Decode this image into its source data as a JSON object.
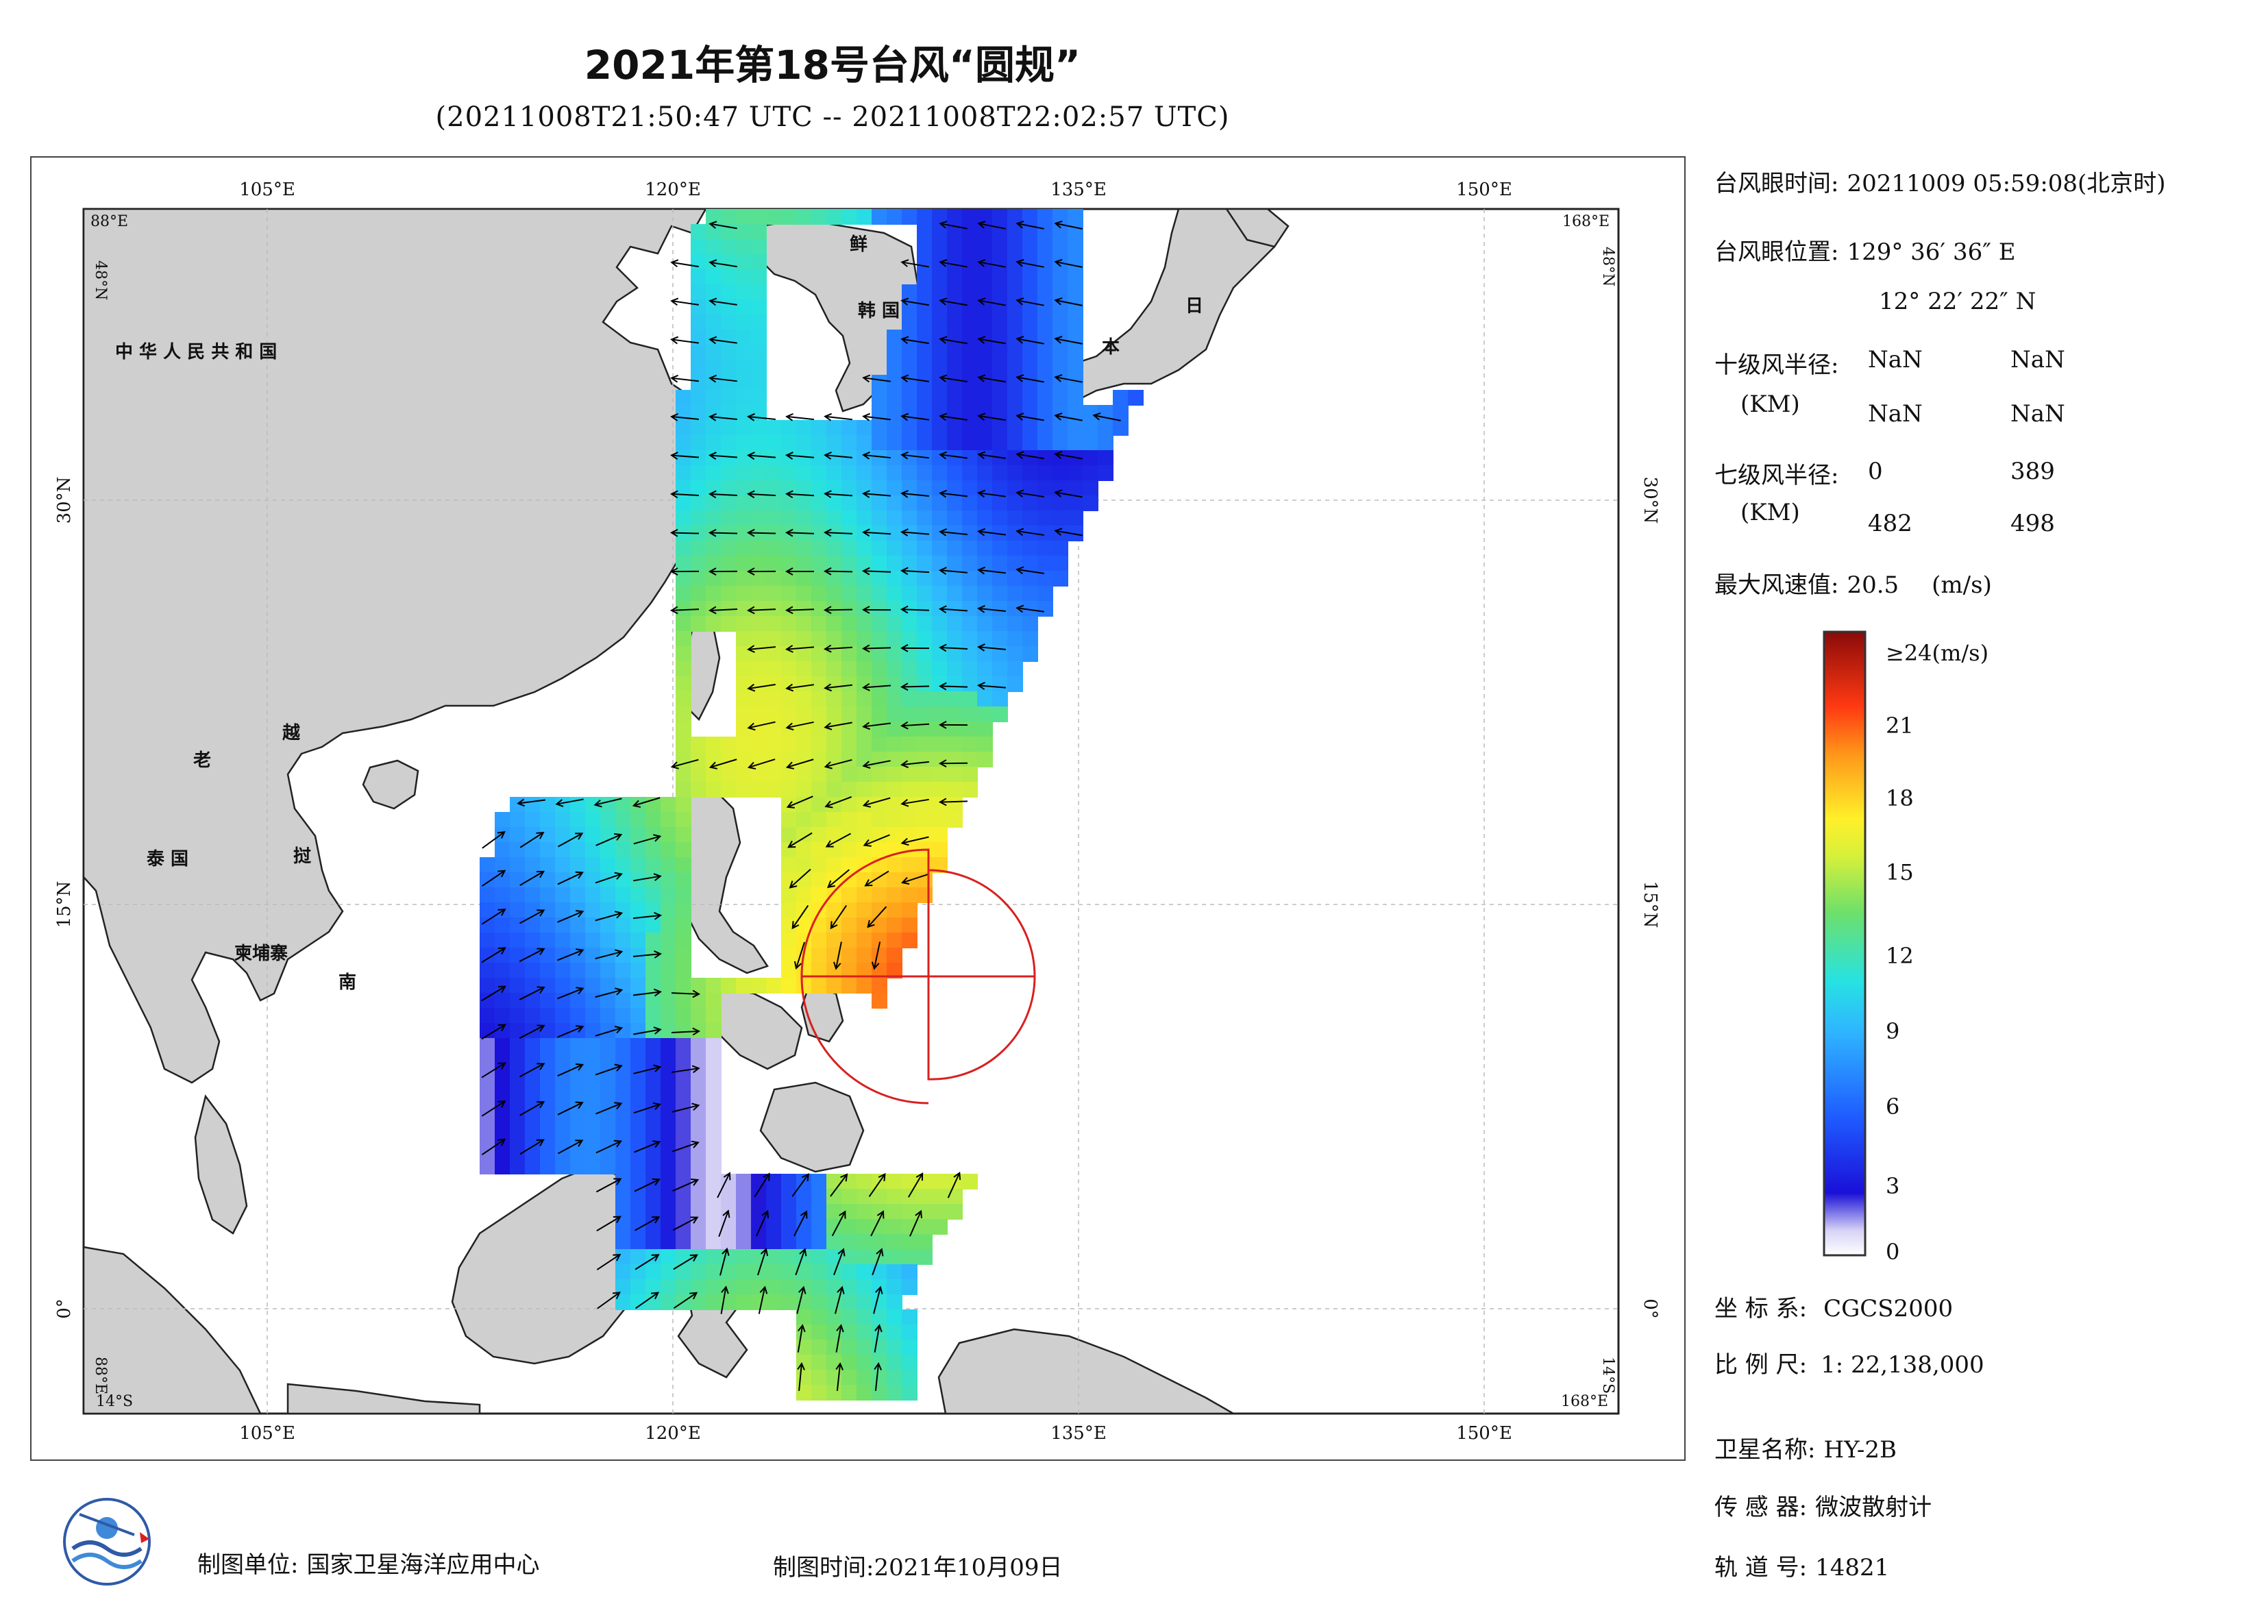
{
  "title": "2021年第18号台风“圆规”",
  "subtitle": "(20211008T21:50:47 UTC -- 20211008T22:02:57 UTC)",
  "map": {
    "lon_ticks": [
      "105°E",
      "120°E",
      "135°E",
      "150°E"
    ],
    "lat_ticks": [
      "30°N",
      "15°N",
      "0°"
    ],
    "corner_labels": {
      "top_left_lon": "88°E",
      "top_left_lat": "48°N",
      "top_right_lon": "168°E",
      "top_right_lat": "48°N",
      "bottom_left_lon": "14°S",
      "bottom_left_lat": "88°E",
      "bottom_right_lon": "168°E",
      "bottom_right_lat": "14°S"
    },
    "country_labels": {
      "china": "中 华 人 民 共 和 国",
      "korea_n": "鲜",
      "korea_s": "韩 国",
      "japan_1": "日",
      "japan_2": "本",
      "laos": "老",
      "vietnam_1": "越",
      "thailand": "泰 国",
      "vietnam_2": "挝",
      "cambodia": "柬埔寨",
      "vietnam_3": "南"
    },
    "colors": {
      "land": "#cfcfcf",
      "ocean": "#ffffff",
      "wind_radius": "#d92020",
      "arrow": "#000000"
    }
  },
  "info": {
    "eye_time_label": "台风眼时间:",
    "eye_time_value": "20211009 05:59:08(北京时)",
    "eye_pos_label": "台风眼位置:",
    "eye_pos_lon": "129° 36′ 36″ E",
    "eye_pos_lat": "12° 22′ 22″ N",
    "r10_label": "十级风半径:",
    "r10_unit": "(KM)",
    "r10_values": [
      "NaN",
      "NaN",
      "NaN",
      "NaN"
    ],
    "r7_label": "七级风半径:",
    "r7_unit": "(KM)",
    "r7_values": [
      "0",
      "389",
      "482",
      "498"
    ],
    "max_wind_label": "最大风速值:",
    "max_wind_value": "20.5",
    "max_wind_unit": "(m/s)",
    "crs_label": "坐 标 系:",
    "crs_value": "CGCS2000",
    "scale_label": "比 例 尺:",
    "scale_value": "1: 22,138,000",
    "satellite_label": "卫星名称:",
    "satellite_value": "HY-2B",
    "sensor_label": "传 感 器:",
    "sensor_value": "微波散射计",
    "orbit_label": "轨 道 号:",
    "orbit_value": "14821"
  },
  "legend": {
    "ticks": [
      "≥24(m/s)",
      "21",
      "18",
      "15",
      "12",
      "9",
      "6",
      "3",
      "0"
    ],
    "max_value": 24,
    "min_value": 0
  },
  "footer": {
    "producer_label": "制图单位:",
    "producer_value": "国家卫星海洋应用中心",
    "date_label": "制图时间:",
    "date_value": "2021年10月09日"
  }
}
